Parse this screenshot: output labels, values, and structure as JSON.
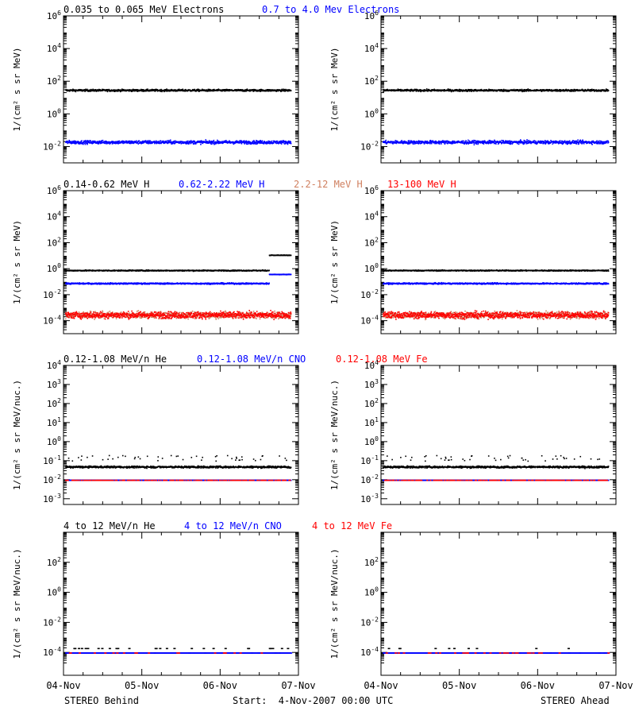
{
  "colors": {
    "black": "#000000",
    "blue": "#0000ff",
    "salmon": "#d08060",
    "red": "#ff0000"
  },
  "x_ticks": [
    "04-Nov",
    "05-Nov",
    "06-Nov",
    "07-Nov"
  ],
  "footer": {
    "left": "STEREO Behind",
    "center": "Start:  4-Nov-2007 00:00 UTC",
    "right": "STEREO Ahead"
  },
  "chart_data": [
    {
      "type": "scatter",
      "panel": "electrons-behind",
      "ylabel": "1/(cm² s sr MeV)",
      "yscale": "log",
      "ylim": [
        0.001,
        1000000
      ],
      "yticks": [
        {
          "e": -2,
          "label": "10^-2"
        },
        {
          "e": 0,
          "label": "10^0"
        },
        {
          "e": 2,
          "label": "10^2"
        },
        {
          "e": 4,
          "label": "10^4"
        },
        {
          "e": 6,
          "label": "10^6"
        }
      ],
      "xlim_days": [
        0,
        3
      ],
      "series": [
        {
          "name": "0.035 to 0.065 MeV Electrons",
          "color": "#000000",
          "level": 30,
          "scatter": 0.06
        },
        {
          "name": "0.7 to 4.0 Mev Electrons",
          "color": "#0000ff",
          "level": 0.02,
          "scatter": 0.1
        }
      ]
    },
    {
      "type": "scatter",
      "panel": "electrons-ahead",
      "ylabel": "1/(cm² s sr MeV)",
      "yscale": "log",
      "ylim": [
        0.001,
        1000000
      ],
      "yticks": [
        {
          "e": -2,
          "label": "10^-2"
        },
        {
          "e": 0,
          "label": "10^0"
        },
        {
          "e": 2,
          "label": "10^2"
        },
        {
          "e": 4,
          "label": "10^4"
        },
        {
          "e": 6,
          "label": "10^6"
        }
      ],
      "xlim_days": [
        0,
        3
      ],
      "series": [
        {
          "color": "#000000",
          "level": 30,
          "scatter": 0.06
        },
        {
          "color": "#0000ff",
          "level": 0.02,
          "scatter": 0.1
        }
      ]
    },
    {
      "type": "scatter",
      "panel": "protons-behind",
      "ylabel": "1/(cm² s sr MeV)",
      "yscale": "log",
      "ylim": [
        1e-05,
        1000000
      ],
      "yticks": [
        {
          "e": -4,
          "label": "10^-4"
        },
        {
          "e": -2,
          "label": "10^-2"
        },
        {
          "e": 0,
          "label": "10^0"
        },
        {
          "e": 2,
          "label": "10^2"
        },
        {
          "e": 4,
          "label": "10^4"
        },
        {
          "e": 6,
          "label": "10^6"
        }
      ],
      "xlim_days": [
        0,
        3
      ],
      "series": [
        {
          "name": "0.14-0.62 MeV H",
          "color": "#000000",
          "level": 0.8,
          "scatter": 0.04
        },
        {
          "name": "0.62-2.22 MeV H",
          "color": "#0000ff",
          "level": 0.08,
          "scatter": 0.05
        },
        {
          "name": "2.2-12 MeV H",
          "color": "#d08060",
          "level": 0.0003,
          "scatter": 0.25
        },
        {
          "name": "13-100 MeV H",
          "color": "#ff0000",
          "level": 0.0003,
          "scatter": 0.25
        }
      ]
    },
    {
      "type": "scatter",
      "panel": "protons-ahead",
      "ylabel": "1/(cm² s sr MeV)",
      "yscale": "log",
      "ylim": [
        1e-05,
        1000000
      ],
      "yticks": [
        {
          "e": -4,
          "label": "10^-4"
        },
        {
          "e": -2,
          "label": "10^-2"
        },
        {
          "e": 0,
          "label": "10^0"
        },
        {
          "e": 2,
          "label": "10^2"
        },
        {
          "e": 4,
          "label": "10^4"
        },
        {
          "e": 6,
          "label": "10^6"
        }
      ],
      "xlim_days": [
        0,
        3
      ],
      "series": [
        {
          "color": "#000000",
          "level": 0.8,
          "scatter": 0.04
        },
        {
          "color": "#0000ff",
          "level": 0.08,
          "scatter": 0.05
        },
        {
          "color": "#d08060",
          "level": 0.0003,
          "scatter": 0.25
        },
        {
          "color": "#ff0000",
          "level": 0.0003,
          "scatter": 0.25
        }
      ]
    },
    {
      "type": "scatter",
      "panel": "ions-low-behind",
      "ylabel": "1/(cm² s sr MeV/nuc.)",
      "yscale": "log",
      "ylim": [
        0.0005,
        10000
      ],
      "yticks": [
        {
          "e": -3,
          "label": "10^-3"
        },
        {
          "e": -2,
          "label": "10^-2"
        },
        {
          "e": -1,
          "label": "10^-1"
        },
        {
          "e": 0,
          "label": "10^0"
        },
        {
          "e": 1,
          "label": "10^1"
        },
        {
          "e": 2,
          "label": "10^2"
        },
        {
          "e": 3,
          "label": "10^3"
        },
        {
          "e": 4,
          "label": "10^4"
        }
      ],
      "xlim_days": [
        0,
        3
      ],
      "series": [
        {
          "name": "0.12-1.08 MeV/n He",
          "color": "#000000",
          "level": 0.05,
          "scatter": 0.05
        },
        {
          "name": "0.12-1.08 MeV/n CNO",
          "color": "#0000ff",
          "level": 0.01,
          "scatter": 0.0
        },
        {
          "name": "0.12-1.08 MeV Fe",
          "color": "#ff0000",
          "level": 0.01,
          "scatter": 0.0
        }
      ]
    },
    {
      "type": "scatter",
      "panel": "ions-low-ahead",
      "ylabel": "1/(cm² s sr MeV/nuc.)",
      "yscale": "log",
      "ylim": [
        0.0005,
        10000
      ],
      "yticks": [
        {
          "e": -3,
          "label": "10^-3"
        },
        {
          "e": -2,
          "label": "10^-2"
        },
        {
          "e": -1,
          "label": "10^-1"
        },
        {
          "e": 0,
          "label": "10^0"
        },
        {
          "e": 1,
          "label": "10^1"
        },
        {
          "e": 2,
          "label": "10^2"
        },
        {
          "e": 3,
          "label": "10^3"
        },
        {
          "e": 4,
          "label": "10^4"
        }
      ],
      "xlim_days": [
        0,
        3
      ],
      "series": [
        {
          "color": "#000000",
          "level": 0.05,
          "scatter": 0.05
        },
        {
          "color": "#0000ff",
          "level": 0.01,
          "scatter": 0.0
        },
        {
          "color": "#ff0000",
          "level": 0.01,
          "scatter": 0.0
        }
      ]
    },
    {
      "type": "scatter",
      "panel": "ions-high-behind",
      "ylabel": "1/(cm² s sr MeV/nuc.)",
      "yscale": "log",
      "ylim": [
        3e-06,
        10000
      ],
      "yticks": [
        {
          "e": -4,
          "label": "10^-4"
        },
        {
          "e": -2,
          "label": "10^-2"
        },
        {
          "e": 0,
          "label": "10^0"
        },
        {
          "e": 2,
          "label": "10^2"
        }
      ],
      "xlim_days": [
        0,
        3
      ],
      "series": [
        {
          "name": "4 to 12 MeV/n He",
          "color": "#000000",
          "level": 0.0001,
          "scatter": 0.0
        },
        {
          "name": "4 to 12 MeV/n CNO",
          "color": "#0000ff",
          "level": 0.0001,
          "scatter": 0.0
        },
        {
          "name": "4 to 12 MeV Fe",
          "color": "#ff0000",
          "level": 0.0001,
          "scatter": 0.0
        }
      ]
    },
    {
      "type": "scatter",
      "panel": "ions-high-ahead",
      "ylabel": "1/(cm² s sr MeV/nuc.)",
      "yscale": "log",
      "ylim": [
        3e-06,
        10000
      ],
      "yticks": [
        {
          "e": -4,
          "label": "10^-4"
        },
        {
          "e": -2,
          "label": "10^-2"
        },
        {
          "e": 0,
          "label": "10^0"
        },
        {
          "e": 2,
          "label": "10^2"
        }
      ],
      "xlim_days": [
        0,
        3
      ],
      "series": [
        {
          "color": "#000000",
          "level": 0.0001,
          "scatter": 0.0
        },
        {
          "color": "#0000ff",
          "level": 0.0001,
          "scatter": 0.0
        },
        {
          "color": "#ff0000",
          "level": 0.0001,
          "scatter": 0.0
        }
      ]
    }
  ]
}
